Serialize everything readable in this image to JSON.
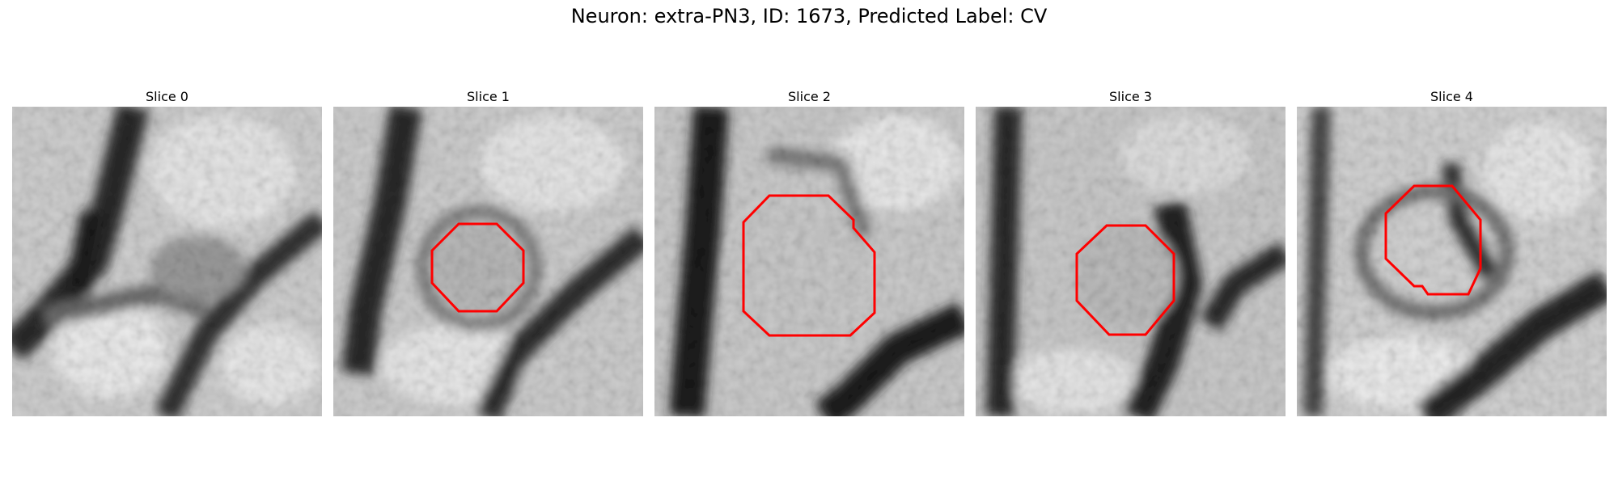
{
  "figure": {
    "title": "Neuron: extra-PN3, ID: 1673, Predicted Label: CV"
  },
  "panels": [
    {
      "title": "Slice 0",
      "contour": "none"
    },
    {
      "title": "Slice 1",
      "contour": "octagon"
    },
    {
      "title": "Slice 2",
      "contour": "large-octagon"
    },
    {
      "title": "Slice 3",
      "contour": "octagon"
    },
    {
      "title": "Slice 4",
      "contour": "irregular-octagon"
    }
  ],
  "colors": {
    "contour": "#ff0000",
    "dark_membrane": "#1e1e1e",
    "background_gray": "#c8c8c8"
  }
}
